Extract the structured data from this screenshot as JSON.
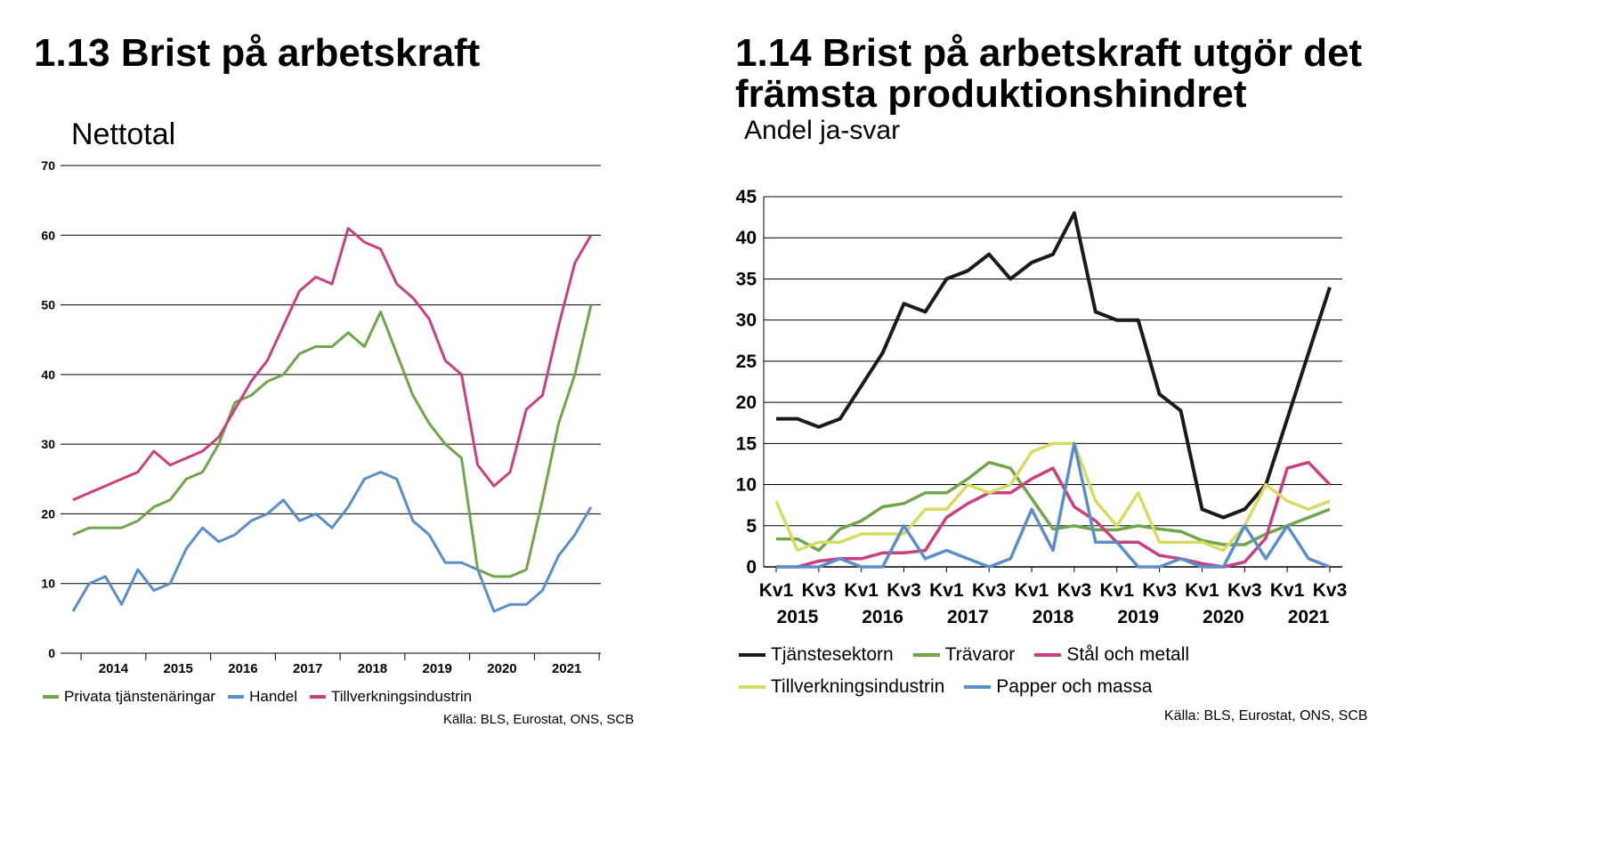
{
  "charts": [
    {
      "title": "1.13 Brist på arbetskraft",
      "subtitle": "Nettotal",
      "source": "Källa: BLS, Eurostat, ONS, SCB"
    },
    {
      "title_line1": "1.14 Brist på arbetskraft utgör det",
      "title_line2": "främsta produktionshindret",
      "subtitle": "Andel ja-svar",
      "source": "Källa: BLS, Eurostat, ONS, SCB"
    }
  ],
  "chart_data": [
    {
      "type": "line",
      "title": "1.13 Brist på arbetskraft",
      "ylabel": "Nettotal",
      "ylim": [
        0,
        70
      ],
      "yticks": [
        0,
        10,
        20,
        30,
        40,
        50,
        60,
        70
      ],
      "grid": true,
      "legend_placement": "bottom",
      "year_labels": [
        "2014",
        "2015",
        "2016",
        "2017",
        "2018",
        "2019",
        "2020",
        "2021"
      ],
      "x_note": "quarterly, Q4 2013 – Q3 2021",
      "series": [
        {
          "name": "Privata tjänstenäringar",
          "color": "#70a54c",
          "values": [
            17,
            18,
            18,
            18,
            19,
            21,
            22,
            25,
            26,
            30,
            36,
            37,
            39,
            40,
            43,
            44,
            44,
            46,
            44,
            49,
            43,
            37,
            33,
            30,
            28,
            12,
            11,
            11,
            12,
            22,
            33,
            40,
            50
          ]
        },
        {
          "name": "Handel",
          "color": "#5b8ec9",
          "values": [
            6,
            10,
            11,
            7,
            12,
            9,
            10,
            15,
            18,
            16,
            17,
            19,
            20,
            22,
            19,
            20,
            18,
            21,
            25,
            26,
            25,
            19,
            17,
            13,
            13,
            12,
            6,
            7,
            7,
            9,
            14,
            17,
            21
          ]
        },
        {
          "name": "Tillverkningsindustrin",
          "color": "#c8407f",
          "values": [
            22,
            23,
            24,
            25,
            26,
            29,
            27,
            28,
            29,
            31,
            35,
            39,
            42,
            47,
            52,
            54,
            53,
            61,
            59,
            58,
            53,
            51,
            48,
            42,
            40,
            27,
            24,
            26,
            35,
            37,
            47,
            56,
            60
          ]
        }
      ]
    },
    {
      "type": "line",
      "title": "1.14 Brist på arbetskraft utgör det främsta produktionshindret",
      "ylabel": "Andel ja-svar",
      "ylim": [
        0,
        45
      ],
      "yticks": [
        0,
        5,
        10,
        15,
        20,
        25,
        30,
        35,
        40,
        45
      ],
      "grid": true,
      "legend_placement": "bottom",
      "quarter_labels": [
        "Kv1",
        "Kv3",
        "Kv1",
        "Kv3",
        "Kv1",
        "Kv3",
        "Kv1",
        "Kv3",
        "Kv1",
        "Kv3",
        "Kv1",
        "Kv3",
        "Kv1",
        "Kv3"
      ],
      "year_labels": [
        "2015",
        "2016",
        "2017",
        "2018",
        "2019",
        "2020",
        "2021"
      ],
      "x_note": "quarterly, Q1 2015 – Q3 2021",
      "series": [
        {
          "name": "Tjänstesektorn",
          "color": "#1a1a1a",
          "values": [
            18,
            18,
            17,
            18,
            22,
            26,
            32,
            31,
            35,
            36,
            38,
            35,
            37,
            38,
            43,
            31,
            30,
            30,
            21,
            19,
            7,
            6,
            7,
            10,
            18,
            26,
            34
          ]
        },
        {
          "name": "Trävaror",
          "color": "#70a54c",
          "values": [
            3.4,
            3.4,
            2,
            4.6,
            5.6,
            7.3,
            7.7,
            9,
            9,
            10.7,
            12.7,
            12,
            8.3,
            4.6,
            5,
            4.5,
            4.5,
            5,
            4.6,
            4.3,
            3.2,
            2.7,
            2.7,
            4,
            5,
            6,
            7
          ]
        },
        {
          "name": "Stål och metall",
          "color": "#c8407f",
          "values": [
            0,
            0,
            0.7,
            1,
            1,
            1.7,
            1.7,
            2,
            6,
            7.7,
            9,
            9,
            10.7,
            12,
            7.3,
            5.6,
            3,
            3,
            1.4,
            1,
            0.4,
            0,
            0.6,
            3.5,
            12,
            12.7,
            10
          ]
        },
        {
          "name": "Tillverkningsindustrin",
          "color": "#d6dc62",
          "values": [
            8,
            2,
            3,
            3,
            4,
            4,
            4,
            7,
            7,
            10,
            9,
            10,
            14,
            15,
            15,
            8,
            5,
            9,
            3,
            3,
            3,
            2,
            5,
            10,
            8,
            7,
            8
          ]
        },
        {
          "name": "Papper och massa",
          "color": "#5b8ec9",
          "values": [
            0,
            0,
            0,
            1,
            0,
            0,
            5,
            1,
            2,
            1,
            0,
            1,
            7,
            2,
            15,
            3,
            3,
            0,
            0,
            1,
            0,
            0,
            5,
            1,
            5,
            1,
            0
          ]
        }
      ]
    }
  ]
}
